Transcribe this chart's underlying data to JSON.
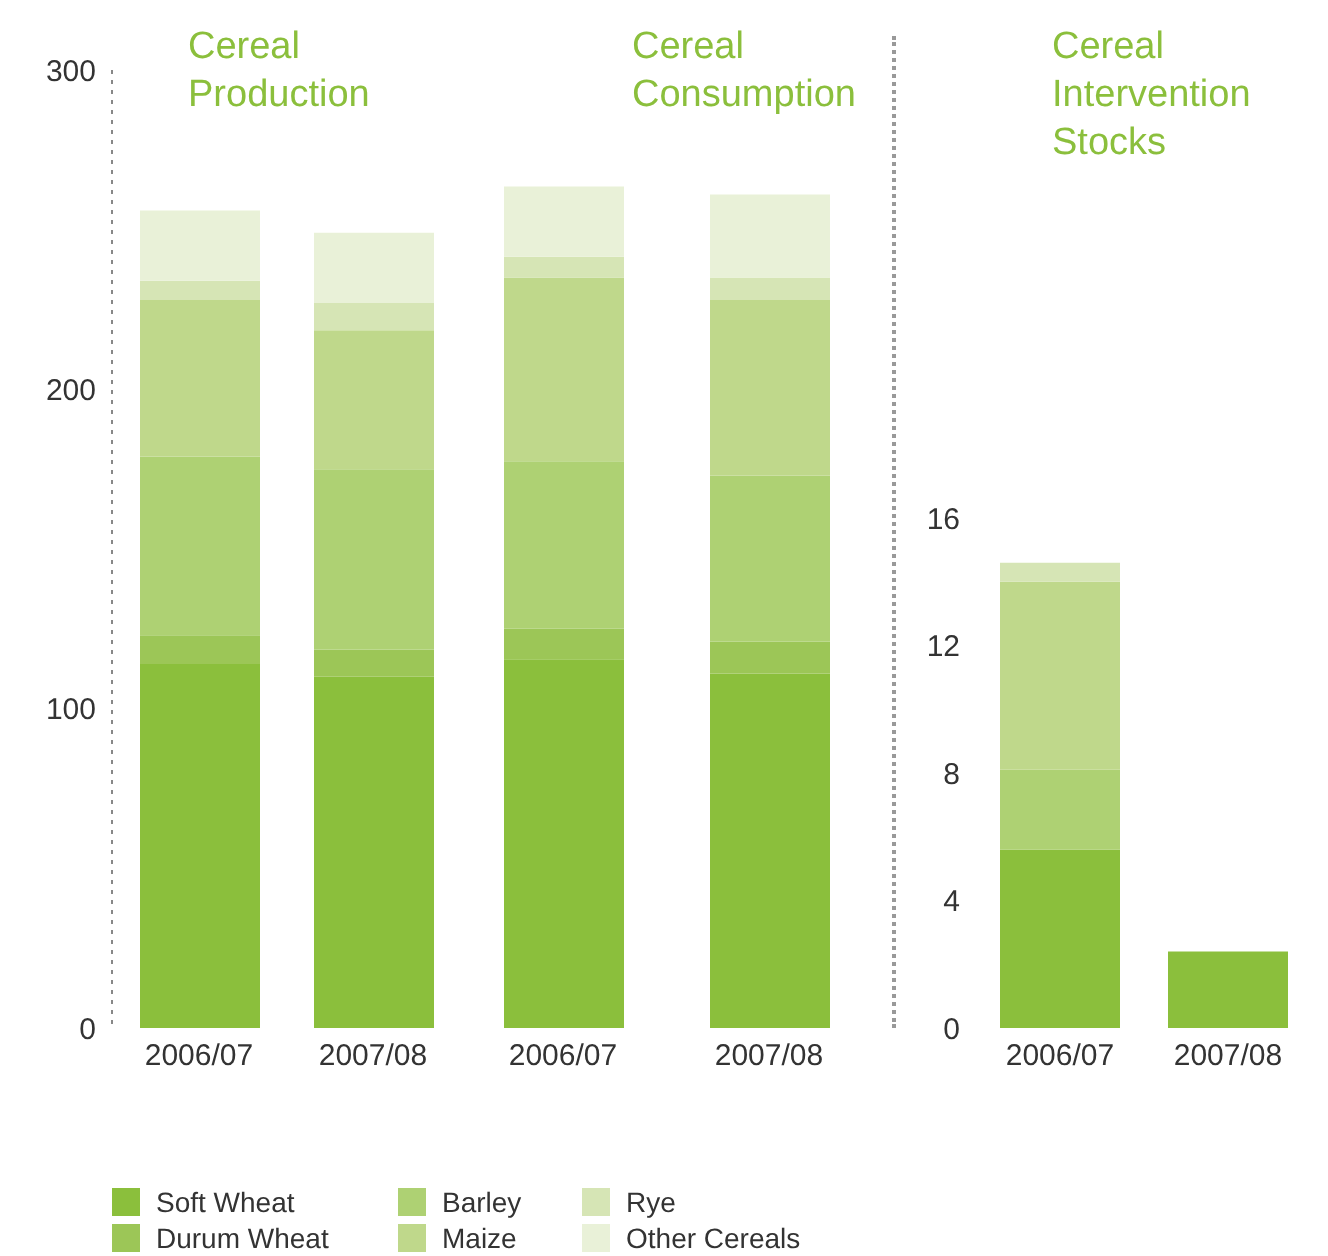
{
  "chart_data": [
    {
      "type": "bar",
      "stacked": true,
      "title": "Cereal Production",
      "categories": [
        "2006/07",
        "2007/08"
      ],
      "ylim": [
        0,
        300
      ],
      "yticks": [
        0,
        100,
        200,
        300
      ],
      "legend": "bottom",
      "series": [
        {
          "name": "Soft Wheat",
          "color": "#8bbf3c",
          "values": [
            114,
            110
          ]
        },
        {
          "name": "Durum Wheat",
          "color": "#9cc657",
          "values": [
            9,
            8.5
          ]
        },
        {
          "name": "Barley",
          "color": "#aed173",
          "values": [
            56,
            56.5
          ]
        },
        {
          "name": "Maize",
          "color": "#bfd88b",
          "values": [
            49,
            43.5
          ]
        },
        {
          "name": "Rye",
          "color": "#d6e5b5",
          "values": [
            6,
            8.5
          ]
        },
        {
          "name": "Other Cereals",
          "color": "#e9f1d8",
          "values": [
            22,
            22
          ]
        }
      ]
    },
    {
      "type": "bar",
      "stacked": true,
      "title": "Cereal Consumption",
      "categories": [
        "2006/07",
        "2007/08"
      ],
      "ylim": [
        0,
        300
      ],
      "tick_labels": "x",
      "series": [
        {
          "name": "Soft Wheat",
          "color": "#8bbf3c",
          "values": [
            115.5,
            111
          ]
        },
        {
          "name": "Durum Wheat",
          "color": "#9cc657",
          "values": [
            9.5,
            10
          ]
        },
        {
          "name": "Barley",
          "color": "#aed173",
          "values": [
            52.5,
            52
          ]
        },
        {
          "name": "Maize",
          "color": "#bfd88b",
          "values": [
            57.5,
            55
          ]
        },
        {
          "name": "Rye",
          "color": "#d6e5b5",
          "values": [
            6.5,
            7
          ]
        },
        {
          "name": "Other Cereals",
          "color": "#e9f1d8",
          "values": [
            22,
            26
          ]
        }
      ]
    },
    {
      "type": "bar",
      "stacked": true,
      "title": "Cereal Intervention Stocks",
      "categories": [
        "2006/07",
        "2007/08"
      ],
      "ylim": [
        0,
        16
      ],
      "yticks": [
        0,
        4,
        8,
        12,
        16
      ],
      "series": [
        {
          "name": "Soft Wheat",
          "color": "#8bbf3c",
          "values": [
            5.6,
            2.4
          ]
        },
        {
          "name": "Barley",
          "color": "#aed173",
          "values": [
            2.5,
            null
          ]
        },
        {
          "name": "Maize",
          "color": "#bfd88b",
          "values": [
            5.9,
            null
          ]
        },
        {
          "name": "Rye",
          "color": "#d6e5b5",
          "values": [
            0.6,
            null
          ]
        }
      ]
    }
  ]
}
